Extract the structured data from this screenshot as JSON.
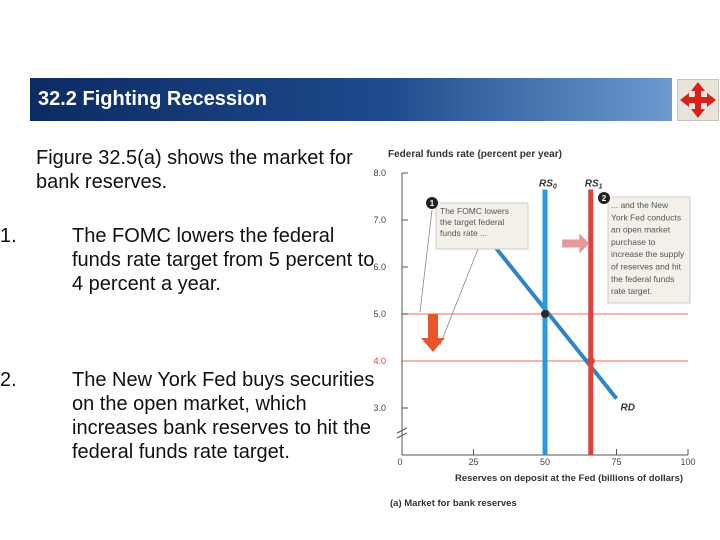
{
  "header": {
    "title": "32.2  Fighting Recession"
  },
  "nav": {
    "icon": "four-arrows-move-icon"
  },
  "body": {
    "intro": "Figure 32.5(a) shows the market for bank reserves.",
    "item1_number": "1.",
    "item1_text": "The FOMC lowers the federal funds rate target from 5 percent to 4 percent a year.",
    "item2_number": "2.",
    "item2_text": "The New York Fed buys securities on the open market, which increases bank reserves to hit the federal funds rate target."
  },
  "chart_data": {
    "type": "line",
    "title": "Federal funds rate (percent per year)",
    "xlabel": "Reserves on deposit at the Fed (billions of dollars)",
    "caption": "(a) Market for bank reserves",
    "xlim": [
      0,
      100
    ],
    "ylim": [
      2.5,
      8.0
    ],
    "x_ticks": [
      "0",
      "25",
      "50",
      "75",
      "100"
    ],
    "y_ticks": [
      "3.0",
      "5.0",
      "6.0",
      "7.0",
      "8.0"
    ],
    "y_tick_highlight": "4.0",
    "series": [
      {
        "name": "RD",
        "type": "demand",
        "points": [
          [
            25,
            7.0
          ],
          [
            75,
            3.2
          ]
        ]
      },
      {
        "name": "RS0",
        "type": "supply",
        "x": 50
      },
      {
        "name": "RS1",
        "type": "supply",
        "x": 66
      }
    ],
    "target_rates": [
      5.0,
      4.0
    ],
    "equilibria": [
      [
        50,
        5.0
      ],
      [
        66,
        4.0
      ]
    ],
    "callouts": [
      {
        "number": "1",
        "text": [
          "The FOMC lowers",
          "the target federal",
          "funds rate ..."
        ]
      },
      {
        "number": "2",
        "text": [
          "... and the New",
          "York Fed conducts",
          "an open market",
          "purchase to",
          "increase the supply",
          "of reserves and hit",
          "the federal funds",
          "rate target."
        ]
      }
    ],
    "colors": {
      "demand": "#2e86c9",
      "rs0": "#2e9ad8",
      "rs1": "#e0403a",
      "target_line": "#f08a78",
      "arrow_down": "#e8562a",
      "axis": "#555555"
    }
  }
}
